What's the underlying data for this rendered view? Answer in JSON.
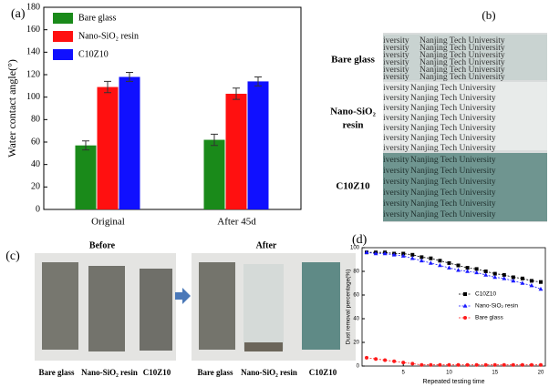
{
  "chart_data": [
    {
      "type": "bar",
      "panel_label": "(a)",
      "ylabel": "Water contact angle(°)",
      "categories": [
        "Original",
        "After 45d"
      ],
      "series": [
        {
          "name": "Bare glass",
          "color": "#1a8a1a",
          "values": [
            57,
            62
          ],
          "errors": [
            4,
            5
          ]
        },
        {
          "name": "Nano-SiO₂ resin",
          "color": "#ff1010",
          "values": [
            109,
            103
          ],
          "errors": [
            5,
            5
          ]
        },
        {
          "name": "C10Z10",
          "color": "#1010ff",
          "values": [
            118,
            114
          ],
          "errors": [
            4,
            4
          ]
        }
      ],
      "ylim": [
        0,
        180
      ],
      "yticks": [
        0,
        20,
        40,
        60,
        80,
        100,
        120,
        140,
        160,
        180
      ],
      "legend": "upper left"
    },
    {
      "type": "line",
      "panel_label": "(d)",
      "ylabel": "Dust removal percentage(%)",
      "xlabel": "Repeated testing time",
      "x": [
        1,
        2,
        3,
        4,
        5,
        6,
        7,
        8,
        9,
        10,
        11,
        12,
        13,
        14,
        15,
        16,
        17,
        18,
        19,
        20
      ],
      "series": [
        {
          "name": "C10Z10",
          "color": "#000000",
          "marker": "square",
          "values": [
            96,
            96,
            96,
            95,
            95,
            94,
            92,
            91,
            89,
            87,
            85,
            83,
            82,
            80,
            78,
            77,
            75,
            74,
            72,
            71
          ]
        },
        {
          "name": "Nano-SiO₂ resin",
          "color": "#1a1aff",
          "marker": "triangle",
          "values": [
            96,
            95,
            95,
            94,
            93,
            91,
            89,
            87,
            85,
            83,
            81,
            80,
            79,
            77,
            75,
            74,
            72,
            70,
            68,
            65
          ]
        },
        {
          "name": "Bare glass",
          "color": "#ff1a1a",
          "marker": "circle",
          "values": [
            7,
            6,
            5,
            4,
            3,
            2,
            1,
            1,
            1,
            1,
            1,
            1,
            1,
            1,
            1,
            1,
            1,
            1,
            1,
            1
          ]
        }
      ],
      "xlim": [
        0.5,
        20.5
      ],
      "xticks": [
        5,
        10,
        15,
        20
      ],
      "ylim": [
        0,
        100
      ],
      "yticks": [
        0,
        20,
        40,
        60,
        80,
        100
      ],
      "legend": "center right"
    }
  ],
  "panel_b": {
    "label": "(b)",
    "watermark": "Nanjing Tech University",
    "samples": [
      "Bare glass",
      "Nano-SiO₂",
      "resin",
      "C10Z10"
    ]
  },
  "panel_c": {
    "label": "(c)",
    "before": "Before",
    "after": "After",
    "samples": [
      "Bare glass",
      "Nano-SiO₂ resin",
      "C10Z10"
    ]
  }
}
